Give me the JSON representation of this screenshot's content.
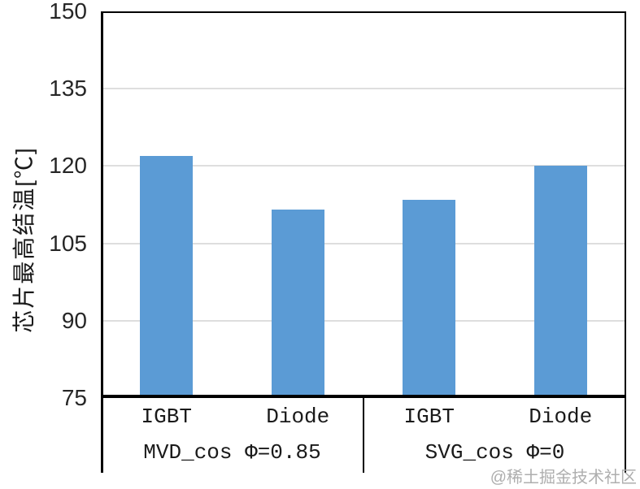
{
  "watermark": "@稀土掘金技术社区",
  "chart_data": {
    "type": "bar",
    "title": "",
    "xlabel": "",
    "ylabel": "芯片最高结温[℃]",
    "ylim": [
      75,
      150
    ],
    "yticks": [
      75,
      90,
      105,
      120,
      135,
      150
    ],
    "grid": "horizontal gridlines at 90/105/120/135, plot framed with black border",
    "legend_position": "none",
    "colors": {
      "bar": "#5b9bd5",
      "gridline": "#dedede",
      "axis": "#000000",
      "tick_text": "#262626",
      "watermark_text": "#aeaeae"
    },
    "categories": [
      "IGBT",
      "Diode",
      "IGBT",
      "Diode"
    ],
    "groups": [
      {
        "label": "MVD_cos Φ=0.85",
        "categories": [
          "IGBT",
          "Diode"
        ],
        "values": [
          122,
          111.5
        ]
      },
      {
        "label": "SVG_cos Φ=0",
        "categories": [
          "IGBT",
          "Diode"
        ],
        "values": [
          113.5,
          120
        ]
      }
    ],
    "series": [
      {
        "name": "芯片最高结温",
        "values": [
          122,
          111.5,
          113.5,
          120
        ]
      }
    ]
  }
}
